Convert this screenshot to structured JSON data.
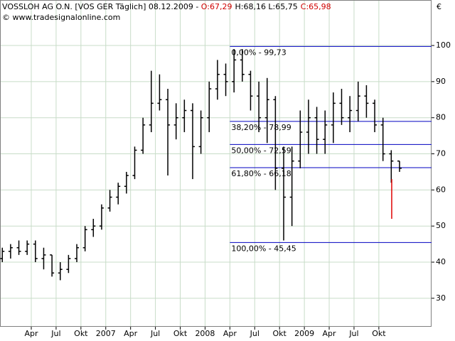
{
  "chart_data": {
    "type": "ohlc",
    "header": {
      "name": "VOSSLOH AG O.N. [VOS GER  Täglich] 08.12.2009 - ",
      "open": "O:67,29",
      "high_low": "H:68,16 L:65,75",
      "close": "C:65,98",
      "source": "© www.tradesignalonline.com",
      "currency": "€"
    },
    "categories": [
      "2005-12",
      "2006-01",
      "2006-02",
      "2006-03",
      "2006-04",
      "2006-05",
      "2006-06",
      "2006-07",
      "2006-08",
      "2006-09",
      "2006-10",
      "2006-11",
      "2006-12",
      "2007-01",
      "2007-02",
      "2007-03",
      "2007-04",
      "2007-05",
      "2007-06",
      "2007-07",
      "2007-08",
      "2007-09",
      "2007-10",
      "2007-11",
      "2007-12",
      "2008-01",
      "2008-02",
      "2008-03",
      "2008-04",
      "2008-05",
      "2008-06",
      "2008-07",
      "2008-08",
      "2008-09",
      "2008-10",
      "2008-11",
      "2008-12",
      "2009-01",
      "2009-02",
      "2009-03",
      "2009-04",
      "2009-05",
      "2009-06",
      "2009-07",
      "2009-08",
      "2009-09",
      "2009-10",
      "2009-11",
      "2009-12"
    ],
    "open": [
      41,
      43,
      44,
      43,
      45,
      41,
      42,
      37,
      38,
      41,
      44,
      49,
      50,
      55,
      58,
      61,
      64,
      71,
      78,
      84,
      85,
      78,
      80,
      82,
      72,
      80,
      88,
      92,
      90,
      96,
      92,
      86,
      80,
      85,
      66,
      58,
      68,
      76,
      80,
      74,
      78,
      84,
      80,
      82,
      86,
      84,
      78,
      70,
      68
    ],
    "high": [
      44,
      45,
      46,
      46,
      46,
      44,
      42,
      40,
      42,
      45,
      50,
      52,
      56,
      60,
      62,
      65,
      72,
      80,
      93,
      92,
      88,
      84,
      85,
      84,
      82,
      90,
      96,
      95,
      99,
      99,
      93,
      90,
      91,
      86,
      72,
      72,
      82,
      85,
      83,
      82,
      87,
      88,
      86,
      90,
      89,
      85,
      80,
      71,
      68
    ],
    "low": [
      40,
      41,
      42,
      42,
      40,
      38,
      36,
      35,
      37,
      40,
      43,
      47,
      49,
      54,
      56,
      59,
      63,
      70,
      76,
      82,
      64,
      74,
      76,
      63,
      70,
      76,
      85,
      86,
      87,
      90,
      82,
      76,
      73,
      60,
      46,
      50,
      66,
      70,
      70,
      70,
      73,
      78,
      76,
      79,
      80,
      76,
      68,
      62,
      65
    ],
    "close": [
      43,
      44,
      43,
      45,
      41,
      42,
      37,
      38,
      41,
      44,
      49,
      50,
      55,
      58,
      61,
      64,
      71,
      78,
      84,
      85,
      78,
      80,
      82,
      72,
      80,
      88,
      92,
      90,
      96,
      92,
      86,
      80,
      85,
      66,
      58,
      68,
      76,
      80,
      74,
      78,
      84,
      80,
      82,
      86,
      84,
      78,
      70,
      68,
      66
    ],
    "color": "#000000",
    "signal": {
      "high": 63,
      "low": 52,
      "color": "#e00000"
    },
    "fibonacci": {
      "color": "#0000c0",
      "start": "2008-04",
      "levels": [
        {
          "value": 99.73,
          "label": "0,00% - 99,73"
        },
        {
          "value": 78.99,
          "label": "38,20% - 78,99"
        },
        {
          "value": 72.59,
          "label": "50,00% - 72,59"
        },
        {
          "value": 66.18,
          "label": "61,80% - 66,18"
        },
        {
          "value": 45.45,
          "label": "100,00% - 45,45"
        }
      ]
    },
    "ylim": [
      22.1,
      112.6
    ],
    "yticks": [
      30,
      40,
      50,
      60,
      70,
      80,
      90,
      100
    ],
    "xticks": [
      {
        "value": "2006-04",
        "label": "Apr"
      },
      {
        "value": "2006-07",
        "label": "Jul"
      },
      {
        "value": "2006-10",
        "label": "Okt"
      },
      {
        "value": "2007-01",
        "label": "2007"
      },
      {
        "value": "2007-04",
        "label": "Apr"
      },
      {
        "value": "2007-07",
        "label": "Jul"
      },
      {
        "value": "2007-10",
        "label": "Okt"
      },
      {
        "value": "2008-01",
        "label": "2008"
      },
      {
        "value": "2008-04",
        "label": "Apr"
      },
      {
        "value": "2008-07",
        "label": "Jul"
      },
      {
        "value": "2008-10",
        "label": "Okt"
      },
      {
        "value": "2009-01",
        "label": "2009"
      },
      {
        "value": "2009-04",
        "label": "Apr"
      },
      {
        "value": "2009-07",
        "label": "Jul"
      },
      {
        "value": "2009-10",
        "label": "Okt"
      }
    ],
    "grid": true,
    "grid_color": "#c8dcc8"
  }
}
